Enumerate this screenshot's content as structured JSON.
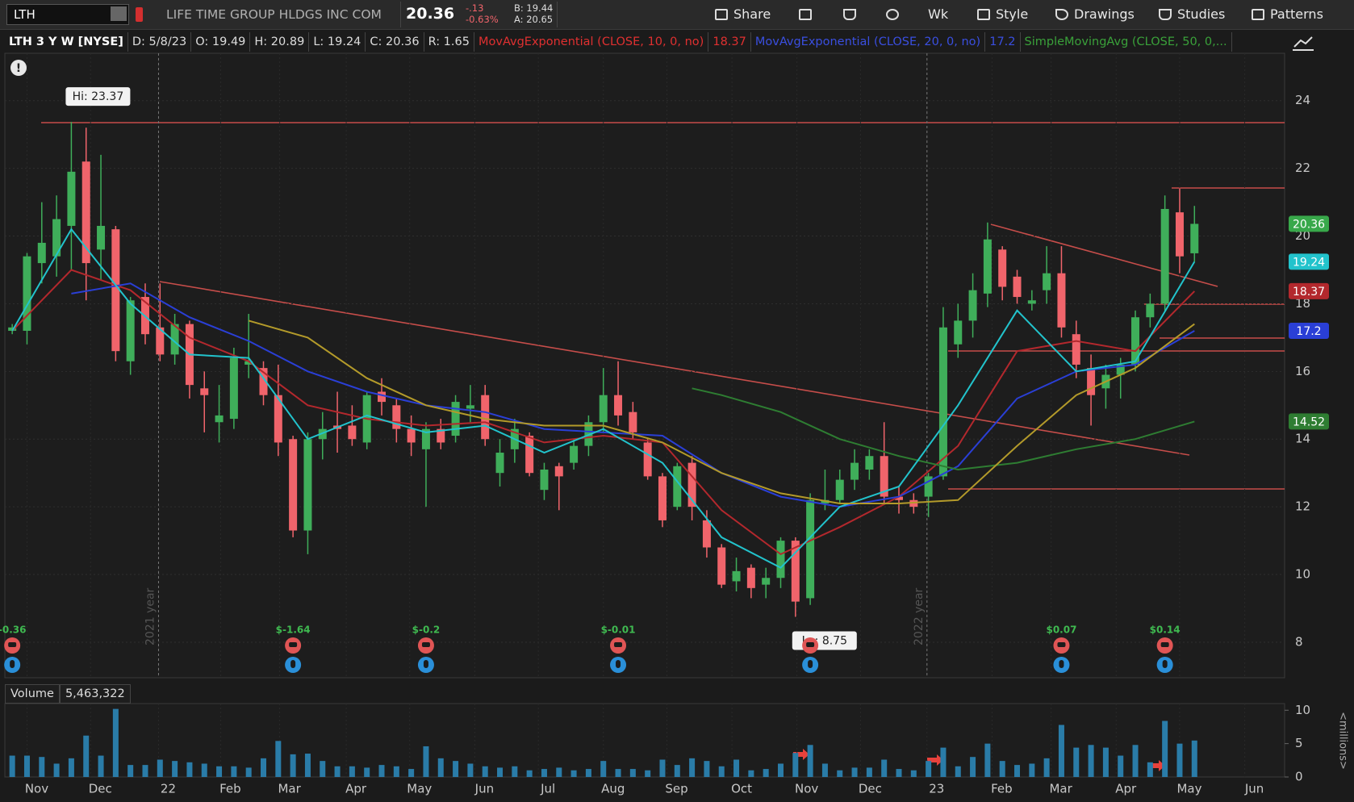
{
  "toolbar": {
    "symbol": "LTH",
    "company": "LIFE TIME GROUP HLDGS INC COM",
    "last": 20.36,
    "change": "-.13",
    "change_pct": "-0.63%",
    "bid": "B: 19.44",
    "ask": "A: 20.65",
    "buttons": [
      "Share",
      "Wk",
      "Style",
      "Drawings",
      "Studies",
      "Patterns"
    ]
  },
  "info_bar": [
    "LTH 3 Y W [NYSE]",
    "D: 5/8/23",
    "O: 19.49",
    "H: 20.89",
    "L: 19.24",
    "C: 20.36",
    "R: 1.65"
  ],
  "chart_data": {
    "type": "candlestick",
    "up_color": "#3fae5a",
    "down_color": "#f0646b",
    "open": [
      17.2,
      17.2,
      19.2,
      19.4,
      20.3,
      22.2,
      19.6,
      20.2,
      16.3,
      18.2,
      17.3,
      16.5,
      17.4,
      15.5,
      14.5,
      14.6,
      16.2,
      16.1,
      15.3,
      14.0,
      11.3,
      14.0,
      14.4,
      14.4,
      13.9,
      15.4,
      15.0,
      14.3,
      13.7,
      14.3,
      14.1,
      14.9,
      15.3,
      13.0,
      13.7,
      14.1,
      12.5,
      13.2,
      13.3,
      13.8,
      14.5,
      15.3,
      14.8,
      13.9,
      12.9,
      12.0,
      13.3,
      11.6,
      10.8,
      9.8,
      10.2,
      9.7,
      9.9,
      11.0,
      9.3,
      12.1,
      12.2,
      12.8,
      13.1,
      13.5,
      12.3,
      12.2,
      12.3,
      12.9,
      16.8,
      17.5,
      18.3,
      19.6,
      18.8,
      18.0,
      18.4,
      18.9,
      17.1,
      16.1,
      15.5,
      15.9,
      16.2,
      17.6,
      18.0,
      20.7,
      19.49
    ],
    "high": [
      17.4,
      19.5,
      21.0,
      21.2,
      23.37,
      23.2,
      22.4,
      20.3,
      18.2,
      18.6,
      18.6,
      17.7,
      17.5,
      16.0,
      15.6,
      16.7,
      17.7,
      16.3,
      16.2,
      14.1,
      14.2,
      14.8,
      15.4,
      15.0,
      15.4,
      15.8,
      15.2,
      14.7,
      14.5,
      14.6,
      15.3,
      15.6,
      15.6,
      14.0,
      14.6,
      14.2,
      13.3,
      13.3,
      14.0,
      14.7,
      16.1,
      16.3,
      15.1,
      14.0,
      13.0,
      13.3,
      13.5,
      11.9,
      10.9,
      10.5,
      10.3,
      10.2,
      11.1,
      11.1,
      12.4,
      13.1,
      13.1,
      13.7,
      13.7,
      14.5,
      12.6,
      12.4,
      13.0,
      17.9,
      18.0,
      18.9,
      20.4,
      19.7,
      19.0,
      18.4,
      19.7,
      19.7,
      17.5,
      16.5,
      16.2,
      16.4,
      17.8,
      18.3,
      21.2,
      21.4,
      20.89
    ],
    "low": [
      17.1,
      16.8,
      18.6,
      18.8,
      19.0,
      18.1,
      18.7,
      16.3,
      15.9,
      16.8,
      16.3,
      16.2,
      15.2,
      14.2,
      13.9,
      14.3,
      15.8,
      15.0,
      13.5,
      11.1,
      10.6,
      13.4,
      13.6,
      13.8,
      13.7,
      14.7,
      13.9,
      13.5,
      12.0,
      13.7,
      13.9,
      14.5,
      13.8,
      12.6,
      13.3,
      12.9,
      12.2,
      11.9,
      13.1,
      13.5,
      14.2,
      14.4,
      14.0,
      12.8,
      11.4,
      11.9,
      11.6,
      10.5,
      9.6,
      9.5,
      9.3,
      9.3,
      9.6,
      8.75,
      9.1,
      11.9,
      12.1,
      12.5,
      12.8,
      12.1,
      11.8,
      11.8,
      11.7,
      12.8,
      16.4,
      17.0,
      17.9,
      18.1,
      18.0,
      17.8,
      18.0,
      17.0,
      15.8,
      14.4,
      14.9,
      15.2,
      16.0,
      17.3,
      17.8,
      18.9,
      19.24
    ],
    "close": [
      17.3,
      19.4,
      19.8,
      20.5,
      21.9,
      19.2,
      20.3,
      16.6,
      18.1,
      17.1,
      16.5,
      17.4,
      15.6,
      15.3,
      14.7,
      16.4,
      16.3,
      15.3,
      13.9,
      11.3,
      14.0,
      14.3,
      14.3,
      14.0,
      15.3,
      15.1,
      14.3,
      13.9,
      14.3,
      13.9,
      15.1,
      15.0,
      14.0,
      13.6,
      14.3,
      13.0,
      13.1,
      12.9,
      13.8,
      14.5,
      15.3,
      14.7,
      14.2,
      12.9,
      11.6,
      13.2,
      12.0,
      10.8,
      9.7,
      10.1,
      9.6,
      9.9,
      11.0,
      9.2,
      12.2,
      12.2,
      12.8,
      13.3,
      13.5,
      12.3,
      12.2,
      12.0,
      12.9,
      17.3,
      17.5,
      18.4,
      19.9,
      18.5,
      18.2,
      18.1,
      18.9,
      17.3,
      16.2,
      15.3,
      15.9,
      16.2,
      17.6,
      18.0,
      20.8,
      19.4,
      20.36
    ],
    "close_tag_color": "#38a84a",
    "xlim": [
      -0.5,
      86.1
    ],
    "xticks": [
      {
        "value": 1,
        "label": "Nov"
      },
      {
        "value": 5.3,
        "label": "Dec"
      },
      {
        "value": 9.9,
        "label": "22"
      },
      {
        "value": 14.1,
        "label": "Feb"
      },
      {
        "value": 18.1,
        "label": "Mar"
      },
      {
        "value": 22.6,
        "label": "Apr"
      },
      {
        "value": 26.9,
        "label": "May"
      },
      {
        "value": 31.3,
        "label": "Jun"
      },
      {
        "value": 35.6,
        "label": "Jul"
      },
      {
        "value": 40,
        "label": "Aug"
      },
      {
        "value": 44.3,
        "label": "Sep"
      },
      {
        "value": 48.7,
        "label": "Oct"
      },
      {
        "value": 53.1,
        "label": "Nov"
      },
      {
        "value": 57.4,
        "label": "Dec"
      },
      {
        "value": 61.9,
        "label": "23"
      },
      {
        "value": 66.3,
        "label": "Feb"
      },
      {
        "value": 70.3,
        "label": "Mar"
      },
      {
        "value": 74.7,
        "label": "Apr"
      },
      {
        "value": 79,
        "label": "May"
      },
      {
        "value": 83.4,
        "label": "Jun"
      }
    ],
    "ylim": [
      6.95,
      25.4
    ],
    "yticks": [
      8,
      10,
      12,
      14,
      16,
      18,
      20,
      22,
      24
    ],
    "grid": true,
    "series": [
      {
        "name": "MovAvgExponential (CLOSE, 10, 0, no)",
        "color": "#b3282d",
        "label_color": "#e03030",
        "tag": true,
        "x": [
          0,
          4,
          8,
          12,
          16,
          20,
          24,
          28,
          32,
          36,
          40,
          44,
          48,
          52,
          56,
          60,
          64,
          68,
          72,
          76,
          80
        ],
        "values": [
          17.2,
          19.0,
          18.4,
          17.0,
          16.3,
          15.0,
          14.6,
          14.4,
          14.5,
          13.9,
          14.1,
          13.9,
          11.9,
          10.6,
          11.4,
          12.3,
          13.8,
          16.6,
          16.9,
          16.6,
          18.37
        ]
      },
      {
        "name": "MovAvgExponential (CLOSE, 20, 0, no)",
        "color": "#2a3fd6",
        "label_color": "#3a4fe0",
        "tag": true,
        "x": [
          4,
          8,
          12,
          16,
          20,
          24,
          28,
          32,
          36,
          40,
          44,
          48,
          52,
          56,
          60,
          64,
          68,
          72,
          76,
          80
        ],
        "values": [
          18.3,
          18.6,
          17.6,
          16.9,
          16.0,
          15.4,
          15.0,
          14.8,
          14.3,
          14.2,
          14.1,
          13.0,
          12.3,
          12.0,
          12.3,
          13.2,
          15.2,
          16.0,
          16.2,
          17.2
        ]
      },
      {
        "name": "SimpleMovingAvg (CLOSE, 50, 0,...",
        "color": "#2e7d32",
        "label_color": "#3aa13a",
        "tag": true,
        "x": [
          46,
          48,
          52,
          56,
          60,
          64,
          68,
          72,
          76,
          80
        ],
        "values": [
          15.5,
          15.3,
          14.8,
          14.0,
          13.5,
          13.1,
          13.3,
          13.7,
          14.0,
          14.52
        ]
      },
      {
        "color": "#22c3cc",
        "tag": true,
        "x": [
          0,
          4,
          8,
          12,
          16,
          20,
          24,
          28,
          32,
          36,
          40,
          44,
          48,
          52,
          56,
          60,
          64,
          68,
          72,
          76,
          80
        ],
        "values": [
          17.2,
          20.2,
          18.0,
          16.5,
          16.4,
          14.0,
          14.7,
          14.2,
          14.4,
          13.6,
          14.3,
          13.3,
          11.1,
          10.2,
          12.0,
          12.6,
          15.0,
          17.8,
          16.0,
          16.3,
          19.24
        ]
      },
      {
        "color": "#b39a2a",
        "x": [
          16,
          20,
          24,
          28,
          32,
          36,
          40,
          44,
          48,
          52,
          56,
          60,
          64,
          68,
          72,
          76,
          80
        ],
        "values": [
          17.5,
          17.0,
          15.8,
          15.0,
          14.6,
          14.4,
          14.4,
          13.9,
          13.0,
          12.4,
          12.1,
          12.1,
          12.2,
          13.8,
          15.3,
          16.1,
          17.4
        ]
      }
    ],
    "hi_label": "Hi: 23.37",
    "lo_label": "Lo: 8.75",
    "events": [
      {
        "at": 0,
        "text": "-0.36"
      },
      {
        "at": 19,
        "text": "$-1.64"
      },
      {
        "at": 28,
        "text": "$-0.2"
      },
      {
        "at": 41,
        "text": "$-0.01"
      },
      {
        "at": 54
      },
      {
        "at": 71,
        "text": "$0.07"
      },
      {
        "at": 78,
        "text": "$0.14"
      }
    ],
    "period_labels": [
      {
        "at": 9.9,
        "text": "2021 year"
      },
      {
        "at": 61.9,
        "text": "2022 year"
      }
    ],
    "volume": {
      "title": "Volume",
      "last_label": "5,463,322",
      "color": "#2a7ca8",
      "unit_label": "<millions>",
      "values": [
        3200000,
        3200000,
        3000000,
        2000000,
        2800000,
        6200000,
        3200000,
        10200000,
        1800000,
        1800000,
        2600000,
        2400000,
        2200000,
        2000000,
        1600000,
        1600000,
        1400000,
        2800000,
        5400000,
        3400000,
        3500000,
        2400000,
        1600000,
        1600000,
        1400000,
        1800000,
        1600000,
        1200000,
        4600000,
        2800000,
        2400000,
        2000000,
        1600000,
        1400000,
        1600000,
        1000000,
        1200000,
        1400000,
        1000000,
        1200000,
        2400000,
        1200000,
        1200000,
        1000000,
        2600000,
        1800000,
        2800000,
        2400000,
        1600000,
        2600000,
        1000000,
        1200000,
        2000000,
        3600000,
        4800000,
        2000000,
        1000000,
        1400000,
        1400000,
        2600000,
        1200000,
        1000000,
        2400000,
        4400000,
        1600000,
        3000000,
        5000000,
        2400000,
        1800000,
        2000000,
        2800000,
        7800000,
        4400000,
        4800000,
        4400000,
        3200000,
        4800000,
        2200000,
        8400000,
        5000000,
        5463322
      ],
      "ylim": [
        0,
        11000000
      ],
      "yticks": [
        {
          "value": 0,
          "label": "0"
        },
        {
          "value": 5000000,
          "label": "5"
        },
        {
          "value": 10000000,
          "label": "10"
        }
      ]
    }
  }
}
